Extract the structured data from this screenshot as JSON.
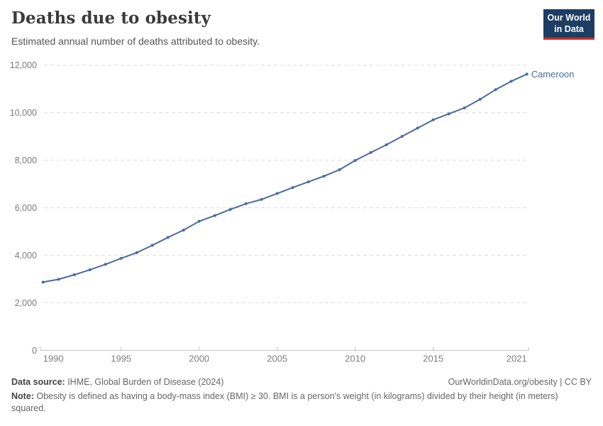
{
  "header": {
    "title": "Deaths due to obesity",
    "subtitle": "Estimated annual number of deaths attributed to obesity.",
    "logo": {
      "line1": "Our World",
      "line2": "in Data",
      "bg_color": "#1d3d63",
      "accent_color": "#cf3129"
    }
  },
  "chart_data": {
    "type": "line",
    "title": "Deaths due to obesity",
    "subtitle": "Estimated annual number of deaths attributed to obesity.",
    "xlabel": "",
    "ylabel": "",
    "xlim": [
      1990,
      2021
    ],
    "ylim": [
      0,
      12000
    ],
    "grid": "horizontal-dashed",
    "legend_position": "end-of-line-label",
    "x": [
      1990,
      1991,
      1992,
      1993,
      1994,
      1995,
      1996,
      1997,
      1998,
      1999,
      2000,
      2001,
      2002,
      2003,
      2004,
      2005,
      2006,
      2007,
      2008,
      2009,
      2010,
      2011,
      2012,
      2013,
      2014,
      2015,
      2016,
      2017,
      2018,
      2019,
      2020,
      2021
    ],
    "series": [
      {
        "name": "Cameroon",
        "color": "#4C6A9C",
        "values": [
          2870,
          2990,
          3180,
          3390,
          3620,
          3870,
          4110,
          4420,
          4750,
          5060,
          5430,
          5670,
          5930,
          6170,
          6350,
          6600,
          6850,
          7090,
          7330,
          7600,
          7990,
          8320,
          8650,
          9000,
          9350,
          9700,
          9950,
          10200,
          10560,
          10970,
          11320,
          11620
        ]
      }
    ],
    "y_ticks": [
      0,
      2000,
      4000,
      6000,
      8000,
      10000,
      12000
    ],
    "y_tick_labels": [
      "0",
      "2,000",
      "4,000",
      "6,000",
      "8,000",
      "10,000",
      "12,000"
    ],
    "x_ticks": [
      1990,
      1995,
      2000,
      2005,
      2010,
      2015,
      2021
    ],
    "x_tick_labels": [
      "1990",
      "1995",
      "2000",
      "2005",
      "2010",
      "2015",
      "2021"
    ],
    "axis_color": "#c2c2c2",
    "gridline_color": "#dcdcdc",
    "tick_label_color": "#7d7d7d",
    "entity_label": "Cameroon"
  },
  "footer": {
    "data_source_label": "Data source:",
    "data_source_text": " IHME, Global Burden of Disease (2024)",
    "citation": "OurWorldinData.org/obesity | CC BY",
    "note_label": "Note:",
    "note_text": " Obesity is defined as having a body-mass index (BMI) ≥ 30. BMI is a person's weight (in kilograms) divided by their height (in meters) squared."
  }
}
